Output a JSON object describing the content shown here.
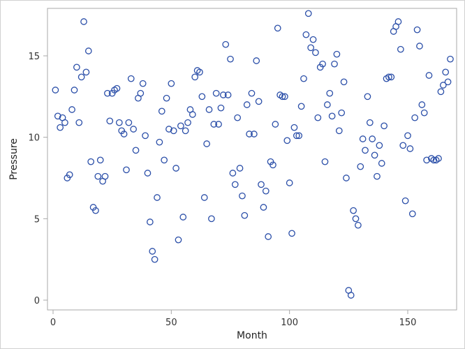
{
  "chart_data": {
    "type": "scatter",
    "title": "",
    "xlabel": "Month",
    "ylabel": "Pressure",
    "xlim": [
      -2,
      171
    ],
    "ylim": [
      -0.3,
      17.8
    ],
    "xticks": [
      0,
      50,
      100,
      150
    ],
    "yticks": [
      0,
      5,
      10,
      15
    ],
    "grid": false,
    "legend": null,
    "marker": {
      "shape": "open-circle",
      "color": "#2a4ea8"
    },
    "series": [
      {
        "name": "Pressure",
        "x": [
          1,
          2,
          3,
          4,
          5,
          6,
          7,
          8,
          9,
          10,
          11,
          12,
          13,
          14,
          15,
          16,
          17,
          18,
          19,
          20,
          21,
          22,
          23,
          24,
          25,
          26,
          27,
          28,
          29,
          30,
          31,
          32,
          33,
          34,
          35,
          36,
          37,
          38,
          39,
          40,
          41,
          42,
          43,
          44,
          45,
          46,
          47,
          48,
          49,
          50,
          51,
          52,
          53,
          54,
          55,
          56,
          57,
          58,
          59,
          60,
          61,
          62,
          63,
          64,
          65,
          66,
          67,
          68,
          69,
          70,
          71,
          72,
          73,
          74,
          75,
          76,
          77,
          78,
          79,
          80,
          81,
          82,
          83,
          84,
          85,
          86,
          87,
          88,
          89,
          90,
          91,
          92,
          93,
          94,
          95,
          96,
          97,
          98,
          99,
          100,
          101,
          102,
          103,
          104,
          105,
          106,
          107,
          108,
          109,
          110,
          111,
          112,
          113,
          114,
          115,
          116,
          117,
          118,
          119,
          120,
          121,
          122,
          123,
          124,
          125,
          126,
          127,
          128,
          129,
          130,
          131,
          132,
          133,
          134,
          135,
          136,
          137,
          138,
          139,
          140,
          141,
          142,
          143,
          144,
          145,
          146,
          147,
          148,
          149,
          150,
          151,
          152,
          153,
          154,
          155,
          156,
          157,
          158,
          159,
          160,
          161,
          162,
          163,
          164,
          165,
          166,
          167,
          168
        ],
        "y": [
          12.9,
          11.3,
          10.6,
          11.2,
          10.9,
          7.5,
          7.7,
          11.7,
          12.9,
          14.3,
          10.9,
          13.7,
          17.1,
          14.0,
          15.3,
          8.5,
          5.7,
          5.5,
          7.6,
          8.6,
          7.3,
          7.6,
          12.7,
          11.0,
          12.7,
          12.9,
          13.0,
          10.9,
          10.4,
          10.2,
          8.0,
          10.9,
          13.6,
          10.5,
          9.2,
          12.4,
          12.7,
          13.3,
          10.1,
          7.8,
          4.8,
          3.0,
          2.5,
          6.3,
          9.7,
          11.6,
          8.6,
          12.4,
          10.5,
          13.3,
          10.4,
          8.1,
          3.7,
          10.7,
          5.1,
          10.4,
          10.9,
          11.7,
          11.4,
          13.7,
          14.1,
          14.0,
          12.5,
          6.3,
          9.6,
          11.7,
          5.0,
          10.8,
          12.7,
          10.8,
          11.8,
          12.6,
          15.7,
          12.6,
          14.8,
          7.8,
          7.1,
          11.2,
          8.1,
          6.4,
          5.2,
          12.0,
          10.2,
          12.7,
          10.2,
          14.7,
          12.2,
          7.1,
          5.7,
          6.7,
          3.9,
          8.5,
          8.3,
          10.8,
          16.7,
          12.6,
          12.5,
          12.5,
          9.8,
          7.2,
          4.1,
          10.6,
          10.1,
          10.1,
          11.9,
          13.6,
          16.3,
          17.6,
          15.5,
          16.0,
          15.2,
          11.2,
          14.3,
          14.5,
          8.5,
          12.0,
          12.7,
          11.3,
          14.5,
          15.1,
          10.4,
          11.5,
          13.4,
          7.5,
          0.6,
          0.3,
          5.5,
          5.0,
          4.6,
          8.2,
          9.9,
          9.2,
          12.5,
          10.9,
          9.9,
          8.9,
          7.6,
          9.5,
          8.4,
          10.7,
          13.6,
          13.7,
          13.7,
          16.5,
          16.8,
          17.1,
          15.4,
          9.5,
          6.1,
          10.1,
          9.3,
          5.3,
          11.2,
          16.6,
          15.6,
          12.0,
          11.5,
          8.6,
          13.8,
          8.7,
          8.6,
          8.6,
          8.7,
          12.8,
          13.2,
          14.0,
          13.4,
          14.8
        ]
      }
    ]
  },
  "axes": {
    "x_label": "Month",
    "y_label": "Pressure",
    "x_tick_labels": [
      "0",
      "50",
      "100",
      "150"
    ],
    "y_tick_labels": [
      "0",
      "5",
      "10",
      "15"
    ]
  }
}
